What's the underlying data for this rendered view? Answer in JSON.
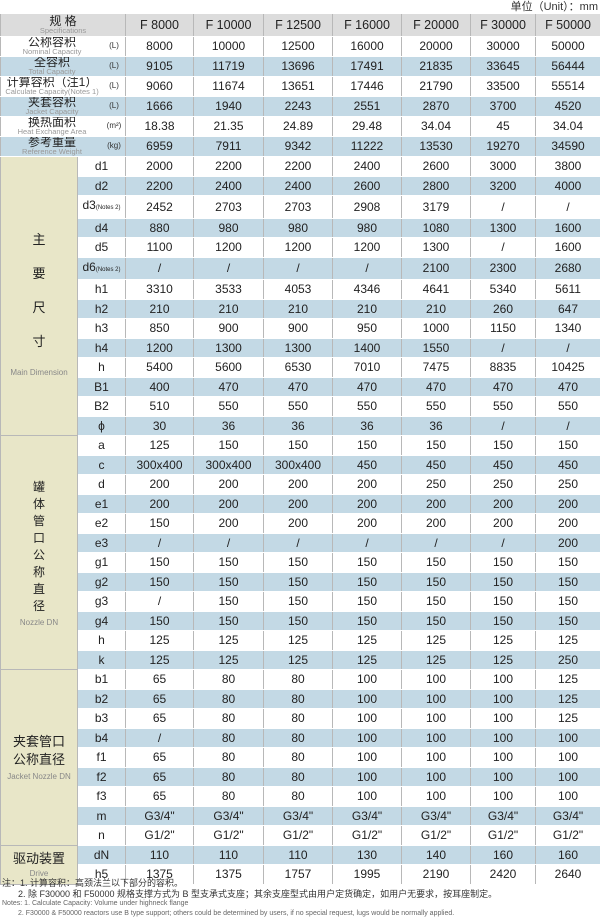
{
  "unit_label": "单位（Unit）：mm",
  "spec_header": {
    "cn": "规 格",
    "en": "Specifications"
  },
  "columns": [
    "F 8000",
    "F 10000",
    "F 12500",
    "F 16000",
    "F 20000",
    "F 30000",
    "F 50000"
  ],
  "top_rows": [
    {
      "cn": "公称容积",
      "en": "Nominal Capacity",
      "unit": "(L)",
      "values": [
        "8000",
        "10000",
        "12500",
        "16000",
        "20000",
        "30000",
        "50000"
      ]
    },
    {
      "cn": "全容积",
      "en": "Total Capacity",
      "unit": "(L)",
      "values": [
        "9105",
        "11719",
        "13696",
        "17491",
        "21835",
        "33645",
        "56444"
      ]
    },
    {
      "cn": "计算容积（注1）",
      "en": "Calculate Capacity(Notes 1)",
      "unit": "(L)",
      "values": [
        "9060",
        "11674",
        "13651",
        "17446",
        "21790",
        "33500",
        "55514"
      ]
    },
    {
      "cn": "夹套容积",
      "en": "Jacket Capacity",
      "unit": "(L)",
      "values": [
        "1666",
        "1940",
        "2243",
        "2551",
        "2870",
        "3700",
        "4520"
      ]
    },
    {
      "cn": "换热面积",
      "en": "Heat Exchange Area",
      "unit": "(m²)",
      "values": [
        "18.38",
        "21.35",
        "24.89",
        "29.48",
        "34.04",
        "45",
        "34.04"
      ]
    },
    {
      "cn": "参考重量",
      "en": "Reference Weight",
      "unit": "(kg)",
      "values": [
        "6959",
        "7911",
        "9342",
        "11222",
        "13530",
        "19270",
        "34590"
      ]
    }
  ],
  "groups": [
    {
      "key": "main",
      "lines": [
        "主",
        "要",
        "尺",
        "寸"
      ],
      "en": "Main Dimension",
      "rows": [
        {
          "label": "d1",
          "values": [
            "2000",
            "2200",
            "2200",
            "2400",
            "2600",
            "3000",
            "3800"
          ]
        },
        {
          "label": "d2",
          "values": [
            "2200",
            "2400",
            "2400",
            "2600",
            "2800",
            "3200",
            "4000"
          ]
        },
        {
          "label": "d3",
          "note": "(Notes 2)",
          "values": [
            "2452",
            "2703",
            "2703",
            "2908",
            "3179",
            "/",
            "/"
          ]
        },
        {
          "label": "d4",
          "values": [
            "880",
            "980",
            "980",
            "980",
            "1080",
            "1300",
            "1600"
          ]
        },
        {
          "label": "d5",
          "values": [
            "1100",
            "1200",
            "1200",
            "1200",
            "1300",
            "/",
            "1600"
          ]
        },
        {
          "label": "d6",
          "note": "(Notes 2)",
          "values": [
            "/",
            "/",
            "/",
            "/",
            "2100",
            "2300",
            "2680"
          ]
        },
        {
          "label": "h1",
          "values": [
            "3310",
            "3533",
            "4053",
            "4346",
            "4641",
            "5340",
            "5611"
          ]
        },
        {
          "label": "h2",
          "values": [
            "210",
            "210",
            "210",
            "210",
            "210",
            "260",
            "647"
          ]
        },
        {
          "label": "h3",
          "values": [
            "850",
            "900",
            "900",
            "950",
            "1000",
            "1150",
            "1340"
          ]
        },
        {
          "label": "h4",
          "values": [
            "1200",
            "1300",
            "1300",
            "1400",
            "1550",
            "/",
            "/"
          ]
        },
        {
          "label": "h",
          "values": [
            "5400",
            "5600",
            "6530",
            "7010",
            "7475",
            "8835",
            "10425"
          ]
        },
        {
          "label": "B1",
          "values": [
            "400",
            "470",
            "470",
            "470",
            "470",
            "470",
            "470"
          ]
        },
        {
          "label": "B2",
          "values": [
            "510",
            "550",
            "550",
            "550",
            "550",
            "550",
            "550"
          ]
        },
        {
          "label": "ϕ",
          "values": [
            "30",
            "36",
            "36",
            "36",
            "36",
            "/",
            "/"
          ]
        }
      ]
    },
    {
      "key": "nozzle",
      "lines": [
        "罐",
        "体",
        "管",
        "口",
        "公",
        "称",
        "直",
        "径"
      ],
      "en": "Nozzle DN",
      "rows": [
        {
          "label": "a",
          "values": [
            "125",
            "150",
            "150",
            "150",
            "150",
            "150",
            "150"
          ]
        },
        {
          "label": "c",
          "values": [
            "300x400",
            "300x400",
            "300x400",
            "450",
            "450",
            "450",
            "450"
          ]
        },
        {
          "label": "d",
          "values": [
            "200",
            "200",
            "200",
            "200",
            "250",
            "250",
            "250"
          ]
        },
        {
          "label": "e1",
          "values": [
            "200",
            "200",
            "200",
            "200",
            "200",
            "200",
            "200"
          ]
        },
        {
          "label": "e2",
          "values": [
            "150",
            "200",
            "200",
            "200",
            "200",
            "200",
            "200"
          ]
        },
        {
          "label": "e3",
          "values": [
            "/",
            "/",
            "/",
            "/",
            "/",
            "/",
            "200"
          ]
        },
        {
          "label": "g1",
          "values": [
            "150",
            "150",
            "150",
            "150",
            "150",
            "150",
            "150"
          ]
        },
        {
          "label": "g2",
          "values": [
            "150",
            "150",
            "150",
            "150",
            "150",
            "150",
            "150"
          ]
        },
        {
          "label": "g3",
          "values": [
            "/",
            "150",
            "150",
            "150",
            "150",
            "150",
            "150"
          ]
        },
        {
          "label": "g4",
          "values": [
            "150",
            "150",
            "150",
            "150",
            "150",
            "150",
            "150"
          ]
        },
        {
          "label": "h",
          "values": [
            "125",
            "125",
            "125",
            "125",
            "125",
            "125",
            "125"
          ]
        },
        {
          "label": "k",
          "values": [
            "125",
            "125",
            "125",
            "125",
            "125",
            "125",
            "250"
          ]
        }
      ]
    },
    {
      "key": "jacket",
      "lines": [
        "夹套管口",
        "公称直径"
      ],
      "en": "Jacket Nozzle DN",
      "rows": [
        {
          "label": "b1",
          "values": [
            "65",
            "80",
            "80",
            "100",
            "100",
            "100",
            "125"
          ]
        },
        {
          "label": "b2",
          "values": [
            "65",
            "80",
            "80",
            "100",
            "100",
            "100",
            "125"
          ]
        },
        {
          "label": "b3",
          "values": [
            "65",
            "80",
            "80",
            "100",
            "100",
            "100",
            "125"
          ]
        },
        {
          "label": "b4",
          "values": [
            "/",
            "80",
            "80",
            "100",
            "100",
            "100",
            "100"
          ]
        },
        {
          "label": "f1",
          "values": [
            "65",
            "80",
            "80",
            "100",
            "100",
            "100",
            "100"
          ]
        },
        {
          "label": "f2",
          "values": [
            "65",
            "80",
            "80",
            "100",
            "100",
            "100",
            "100"
          ]
        },
        {
          "label": "f3",
          "values": [
            "65",
            "80",
            "80",
            "100",
            "100",
            "100",
            "100"
          ]
        },
        {
          "label": "m",
          "values": [
            "G3/4\"",
            "G3/4\"",
            "G3/4\"",
            "G3/4\"",
            "G3/4\"",
            "G3/4\"",
            "G3/4\""
          ]
        },
        {
          "label": "n",
          "values": [
            "G1/2\"",
            "G1/2\"",
            "G1/2\"",
            "G1/2\"",
            "G1/2\"",
            "G1/2\"",
            "G1/2\""
          ]
        }
      ]
    },
    {
      "key": "drive",
      "lines": [
        "驱动装置"
      ],
      "en": "Drive",
      "rows": [
        {
          "label": "dN",
          "values": [
            "110",
            "110",
            "110",
            "130",
            "140",
            "160",
            "160"
          ]
        },
        {
          "label": "h5",
          "values": [
            "1375",
            "1375",
            "1757",
            "1995",
            "2190",
            "2420",
            "2640"
          ]
        }
      ]
    }
  ],
  "footnotes": {
    "cn": [
      "注：1. 计算容积：高颈法兰以下部分的容积。",
      "2. 除 F30000 和 F50000 规格支撑方式为 B 型支承式支座；其余支座型式由用户定货确定，如用户无要求，按耳座制定。"
    ],
    "en": [
      "Notes: 1. Calculate Capacity: Volume under highneck flange",
      "2. F30000 & F50000 reactors use B type support; others could be determined by users, if no special request, lugs would be normally applied."
    ]
  }
}
